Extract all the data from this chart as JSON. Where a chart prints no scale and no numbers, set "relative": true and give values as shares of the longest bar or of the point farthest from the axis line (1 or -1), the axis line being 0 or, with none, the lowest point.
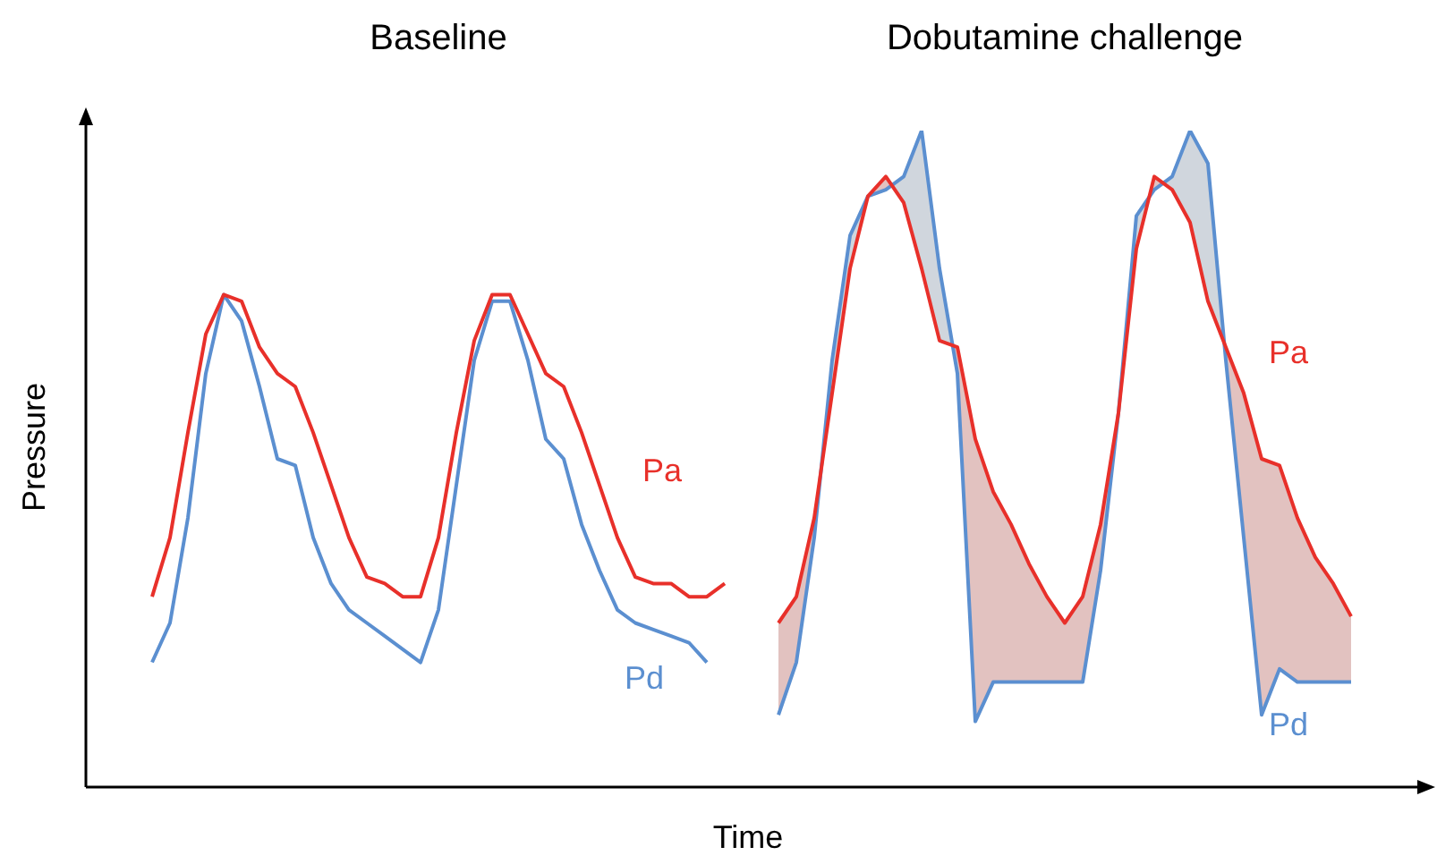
{
  "chart_data": {
    "type": "line",
    "relative": true,
    "xlabel": "Time",
    "ylabel": "Pressure",
    "legend": false,
    "annotations": [
      "Baseline",
      "Dobutamine challenge"
    ],
    "categories": [
      null,
      null,
      null,
      null,
      null,
      null,
      null,
      null,
      null,
      null,
      null,
      null,
      null,
      null,
      null,
      null,
      null,
      null,
      null,
      null,
      null,
      null,
      null,
      null,
      null,
      null,
      null,
      null,
      null,
      null,
      null,
      null,
      null,
      null,
      null,
      null,
      null,
      null,
      null,
      null,
      null,
      null,
      null,
      null,
      null,
      null,
      null,
      null,
      null,
      null,
      null,
      null,
      null,
      null,
      null,
      null,
      null,
      null,
      null,
      null,
      null,
      null,
      null,
      null,
      null,
      null,
      null,
      null
    ],
    "series": [
      {
        "name": "Pa",
        "color": "#e8302a",
        "values": [
          0.29,
          0.38,
          0.54,
          0.69,
          0.75,
          0.74,
          0.67,
          0.63,
          0.61,
          0.54,
          0.46,
          0.38,
          0.32,
          0.31,
          0.29,
          0.29,
          0.38,
          0.54,
          0.68,
          0.75,
          0.75,
          0.69,
          0.63,
          0.61,
          0.54,
          0.46,
          0.38,
          0.32,
          0.31,
          0.31,
          0.29,
          0.29,
          0.31,
          null,
          null,
          null,
          null,
          null,
          null,
          null,
          null,
          null,
          null,
          null,
          null,
          null,
          null,
          null,
          null,
          null,
          null,
          null,
          null,
          null,
          null,
          null,
          null,
          null,
          null,
          null,
          null,
          null,
          null,
          null,
          null,
          null,
          null,
          null
        ]
      },
      {
        "name": "Pd",
        "color": "#5b8fd0",
        "values": [
          0.19,
          0.25,
          0.41,
          0.63,
          0.75,
          0.71,
          0.61,
          0.5,
          0.49,
          0.38,
          0.31,
          0.27,
          0.25,
          0.23,
          0.21,
          0.19,
          0.27,
          0.46,
          0.65,
          0.74,
          0.74,
          0.65,
          0.53,
          0.5,
          0.4,
          0.33,
          0.27,
          0.25,
          0.24,
          0.23,
          0.22,
          0.19,
          null,
          null,
          null,
          null,
          null,
          null,
          null,
          null,
          null,
          null,
          null,
          null,
          null,
          null,
          null,
          null,
          null,
          null,
          null,
          null,
          null,
          null,
          null,
          null,
          null,
          null,
          null,
          null,
          null,
          null,
          null,
          null,
          null,
          null,
          null,
          null
        ]
      },
      {
        "name": "Pa",
        "color": "#e8302a",
        "values": [
          null,
          null,
          null,
          null,
          null,
          null,
          null,
          null,
          null,
          null,
          null,
          null,
          null,
          null,
          null,
          null,
          null,
          null,
          null,
          null,
          null,
          null,
          null,
          null,
          null,
          null,
          null,
          null,
          null,
          null,
          null,
          null,
          null,
          null,
          null,
          0.25,
          0.29,
          0.41,
          0.6,
          0.79,
          0.9,
          0.93,
          0.89,
          0.79,
          0.68,
          0.67,
          0.53,
          0.45,
          0.4,
          0.34,
          0.29,
          0.25,
          0.29,
          0.4,
          0.57,
          0.82,
          0.93,
          0.91,
          0.86,
          0.74,
          0.67,
          0.6,
          0.5,
          0.49,
          0.41,
          0.35,
          0.31,
          0.26
        ]
      },
      {
        "name": "Pd",
        "color": "#5b8fd0",
        "values": [
          null,
          null,
          null,
          null,
          null,
          null,
          null,
          null,
          null,
          null,
          null,
          null,
          null,
          null,
          null,
          null,
          null,
          null,
          null,
          null,
          null,
          null,
          null,
          null,
          null,
          null,
          null,
          null,
          null,
          null,
          null,
          null,
          null,
          null,
          null,
          0.11,
          0.19,
          0.38,
          0.65,
          0.84,
          0.9,
          0.91,
          0.93,
          1,
          0.79,
          0.63,
          0.1,
          0.16,
          0.16,
          0.16,
          0.16,
          0.16,
          0.16,
          0.33,
          0.57,
          0.87,
          0.91,
          0.93,
          1,
          0.95,
          0.65,
          0.38,
          0.11,
          0.18,
          0.16,
          0.16,
          0.16,
          0.16
        ]
      }
    ]
  }
}
